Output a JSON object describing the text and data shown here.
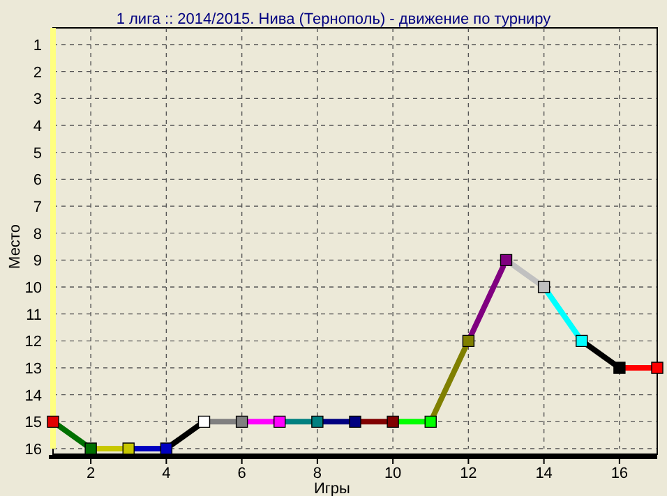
{
  "chart_data": {
    "type": "line",
    "title": "1 лига :: 2014/2015. Нива (Тернополь) - движение по турниру",
    "xlabel": "Игры",
    "ylabel": "Место",
    "x": [
      1,
      2,
      3,
      4,
      5,
      6,
      7,
      8,
      9,
      10,
      11,
      12,
      13,
      14,
      15,
      16,
      17
    ],
    "series": [
      {
        "values": [
          15,
          16,
          16,
          16,
          15,
          15,
          15,
          15,
          15,
          15,
          15,
          12,
          9,
          10,
          12,
          13,
          13
        ],
        "colors": [
          "#e00000",
          "#007000",
          "#c8c800",
          "#0000c0",
          "#ffffff",
          "#808080",
          "#ff00ff",
          "#008080",
          "#000080",
          "#800000",
          "#00ff00",
          "#808000",
          "#800080",
          "#c0c0c0",
          "#00ffff",
          "#000000",
          "#ff0000"
        ]
      }
    ],
    "xlim": [
      1,
      17
    ],
    "xticks": [
      2,
      4,
      6,
      8,
      10,
      12,
      14,
      16
    ],
    "ylim": [
      16,
      1
    ],
    "yticks": [
      1,
      2,
      3,
      4,
      5,
      6,
      7,
      8,
      9,
      10,
      11,
      12,
      13,
      14,
      15,
      16
    ],
    "grid": true,
    "marker": "square"
  }
}
